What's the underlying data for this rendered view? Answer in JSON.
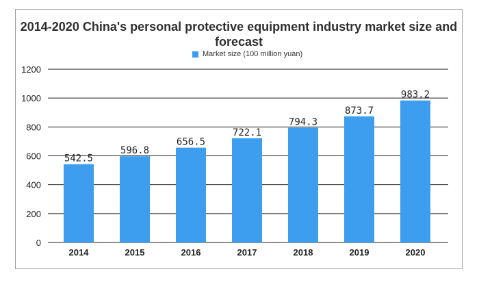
{
  "chart_data": {
    "type": "bar",
    "title": "2014-2020 China's personal protective equipment industry market size and forecast",
    "categories": [
      "2014",
      "2015",
      "2016",
      "2017",
      "2018",
      "2019",
      "2020"
    ],
    "series": [
      {
        "name": "Market size (100 million yuan)",
        "values": [
          542.5,
          596.8,
          656.5,
          722.1,
          794.3,
          873.7,
          983.2
        ],
        "data_labels": [
          "542.5",
          "596.8",
          "656.5",
          "722.1",
          "794.3",
          "873.7",
          "983.2"
        ]
      }
    ],
    "ylim": [
      0,
      1200
    ],
    "yticks": [
      0,
      200,
      400,
      600,
      800,
      1000,
      1200
    ],
    "ytick_labels": [
      "0",
      "200",
      "400",
      "600",
      "800",
      "1000",
      "1200"
    ],
    "grid": true,
    "legend_position": "top-center",
    "bar_color": "#3d9ef0",
    "grid_color": "#1e1e1e",
    "text_color": "#1e1e1e"
  }
}
